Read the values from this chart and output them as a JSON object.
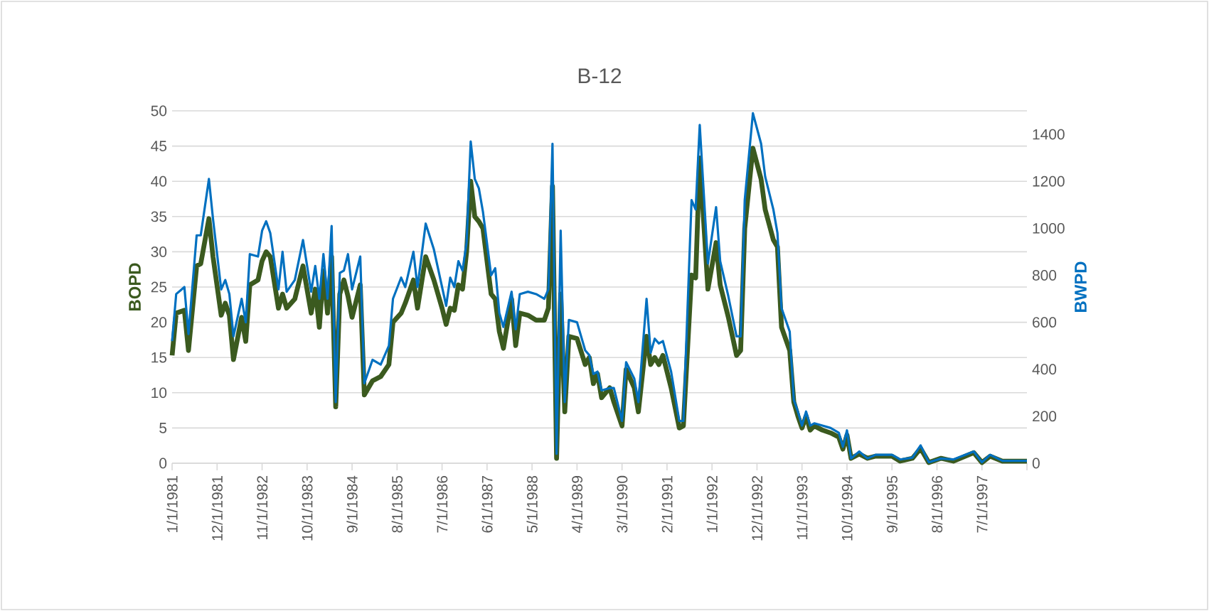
{
  "chart_data": {
    "type": "line",
    "title": "B-12",
    "ylabel": "BOPD",
    "y2label": "BWPD",
    "x": [
      "1981-01",
      "1981-02",
      "1981-04",
      "1981-05",
      "1981-07",
      "1981-08",
      "1981-10",
      "1981-11",
      "1982-01",
      "1982-02",
      "1982-03",
      "1982-04",
      "1982-06",
      "1982-07",
      "1982-08",
      "1982-10",
      "1982-11",
      "1982-12",
      "1983-01",
      "1983-03",
      "1983-04",
      "1983-05",
      "1983-07",
      "1983-09",
      "1983-11",
      "1983-12",
      "1984-01",
      "1984-02",
      "1984-03",
      "1984-04",
      "1984-05",
      "1984-06",
      "1984-07",
      "1984-08",
      "1984-09",
      "1984-11",
      "1984-12",
      "1985-02",
      "1985-04",
      "1985-06",
      "1985-07",
      "1985-09",
      "1985-10",
      "1985-12",
      "1986-01",
      "1986-03",
      "1986-05",
      "1986-07",
      "1986-08",
      "1986-09",
      "1986-10",
      "1986-11",
      "1986-12",
      "1987-01",
      "1987-02",
      "1987-03",
      "1987-04",
      "1987-05",
      "1987-07",
      "1987-08",
      "1987-09",
      "1987-10",
      "1987-12",
      "1988-01",
      "1988-02",
      "1988-04",
      "1988-06",
      "1988-08",
      "1988-09",
      "1988-10",
      "1988-11",
      "1988-12",
      "1989-01",
      "1989-02",
      "1989-04",
      "1989-06",
      "1989-07",
      "1989-08",
      "1989-09",
      "1989-10",
      "1989-12",
      "1990-01",
      "1990-03",
      "1990-04",
      "1990-06",
      "1990-07",
      "1990-09",
      "1990-10",
      "1990-11",
      "1990-12",
      "1991-01",
      "1991-03",
      "1991-05",
      "1991-06",
      "1991-08",
      "1991-09",
      "1991-10",
      "1991-12",
      "1992-02",
      "1992-03",
      "1992-05",
      "1992-07",
      "1992-08",
      "1992-09",
      "1992-11",
      "1993-01",
      "1993-02",
      "1993-04",
      "1993-05",
      "1993-06",
      "1993-08",
      "1993-09",
      "1993-10",
      "1993-11",
      "1993-12",
      "1994-01",
      "1994-02",
      "1994-04",
      "1994-06",
      "1994-08",
      "1994-09",
      "1994-10",
      "1994-11",
      "1995-01",
      "1995-03",
      "1995-05",
      "1995-09",
      "1995-11",
      "1996-02",
      "1996-04",
      "1996-06",
      "1996-09",
      "1996-12",
      "1997-05",
      "1997-07",
      "1997-09",
      "1997-12",
      "1998-06"
    ],
    "series": [
      {
        "name": null,
        "color": "#3b5a1f",
        "values": [
          15.3,
          21.3,
          21.7,
          16,
          28,
          28.3,
          34.7,
          29.3,
          21,
          22.7,
          21,
          14.7,
          20.7,
          17.3,
          25.3,
          26,
          28.7,
          30,
          29.3,
          22,
          24,
          22,
          23.3,
          28,
          21.3,
          24.7,
          19.3,
          27.3,
          21.3,
          29.3,
          8,
          24,
          26,
          23.7,
          20.7,
          25.3,
          9.7,
          11.7,
          12.3,
          14,
          20,
          21.3,
          22.7,
          26,
          22,
          29.3,
          26,
          22,
          19.7,
          22,
          21.7,
          25.3,
          24.7,
          30,
          40,
          35,
          34.3,
          33.3,
          24,
          23.3,
          18.7,
          16.3,
          23.3,
          16.7,
          21.3,
          21,
          20.3,
          20.3,
          22,
          39.3,
          0.7,
          24,
          7.3,
          18,
          17.7,
          14,
          15,
          11.3,
          12.7,
          9.3,
          10.7,
          8.7,
          5.3,
          13.3,
          10.7,
          7.3,
          18,
          14,
          15,
          14,
          15.3,
          10.7,
          5,
          5.3,
          26.7,
          26.3,
          43.3,
          24.7,
          31.3,
          25.3,
          20.7,
          15.3,
          16,
          33.3,
          44.7,
          40.3,
          36,
          31.7,
          30.7,
          19.3,
          16,
          8.7,
          6.7,
          5,
          6.7,
          4.7,
          5.3,
          4.7,
          4.3,
          3.7,
          2,
          4,
          0.7,
          1.3,
          0.7,
          1,
          1,
          0.3,
          0.7,
          2.1,
          0.1,
          0.7,
          0.3,
          1.5,
          0.1,
          1,
          0.3,
          0.3
        ]
      },
      {
        "name": null,
        "color": "#0070c0",
        "axis": "y2",
        "values": [
          520,
          720,
          750,
          550,
          970,
          970,
          1210,
          1040,
          740,
          780,
          720,
          540,
          700,
          600,
          890,
          880,
          990,
          1030,
          980,
          740,
          900,
          730,
          780,
          950,
          730,
          840,
          700,
          890,
          700,
          1010,
          260,
          810,
          820,
          890,
          740,
          880,
          340,
          440,
          420,
          500,
          700,
          790,
          750,
          900,
          750,
          1020,
          910,
          750,
          670,
          790,
          750,
          860,
          820,
          940,
          1370,
          1210,
          1170,
          1070,
          800,
          830,
          640,
          580,
          730,
          570,
          720,
          730,
          720,
          700,
          740,
          1360,
          40,
          990,
          260,
          610,
          600,
          480,
          460,
          380,
          390,
          310,
          320,
          320,
          180,
          430,
          360,
          260,
          700,
          470,
          530,
          510,
          520,
          390,
          180,
          180,
          1120,
          1080,
          1440,
          850,
          1090,
          860,
          710,
          540,
          540,
          1120,
          1490,
          1360,
          1220,
          1080,
          980,
          660,
          560,
          270,
          220,
          160,
          220,
          160,
          170,
          160,
          150,
          130,
          70,
          140,
          20,
          50,
          20,
          36,
          36,
          16,
          24,
          76,
          4,
          20,
          16,
          50,
          4,
          36,
          10,
          10
        ]
      }
    ],
    "xlim": [
      "1981-01",
      "1998-06"
    ],
    "xticks": [
      {
        "value": "1981-01-01",
        "label": "1/1/1981"
      },
      {
        "value": "1981-12-01",
        "label": "12/1/1981"
      },
      {
        "value": "1982-11-01",
        "label": "11/1/1982"
      },
      {
        "value": "1983-10-01",
        "label": "10/1/1983"
      },
      {
        "value": "1984-09-01",
        "label": "9/1/1984"
      },
      {
        "value": "1985-08-01",
        "label": "8/1/1985"
      },
      {
        "value": "1986-07-01",
        "label": "7/1/1986"
      },
      {
        "value": "1987-06-01",
        "label": "6/1/1987"
      },
      {
        "value": "1988-05-01",
        "label": "5/1/1988"
      },
      {
        "value": "1989-04-01",
        "label": "4/1/1989"
      },
      {
        "value": "1990-03-01",
        "label": "3/1/1990"
      },
      {
        "value": "1991-02-01",
        "label": "2/1/1991"
      },
      {
        "value": "1992-01-01",
        "label": "1/1/1992"
      },
      {
        "value": "1992-12-01",
        "label": "12/1/1992"
      },
      {
        "value": "1993-11-01",
        "label": "11/1/1993"
      },
      {
        "value": "1994-10-01",
        "label": "10/1/1994"
      },
      {
        "value": "1995-09-01",
        "label": "9/1/1995"
      },
      {
        "value": "1996-08-01",
        "label": "8/1/1996"
      },
      {
        "value": "1997-07-01",
        "label": "7/1/1997"
      },
      {
        "value": "1998-06-01",
        "label": null
      }
    ],
    "ylim": [
      0,
      50
    ],
    "yticks": [
      0,
      5,
      10,
      15,
      20,
      25,
      30,
      35,
      40,
      45,
      50
    ],
    "y2lim": [
      0,
      1500
    ],
    "y2ticks": [
      0,
      200,
      400,
      600,
      800,
      1000,
      1200,
      1400
    ],
    "grid": "y"
  }
}
